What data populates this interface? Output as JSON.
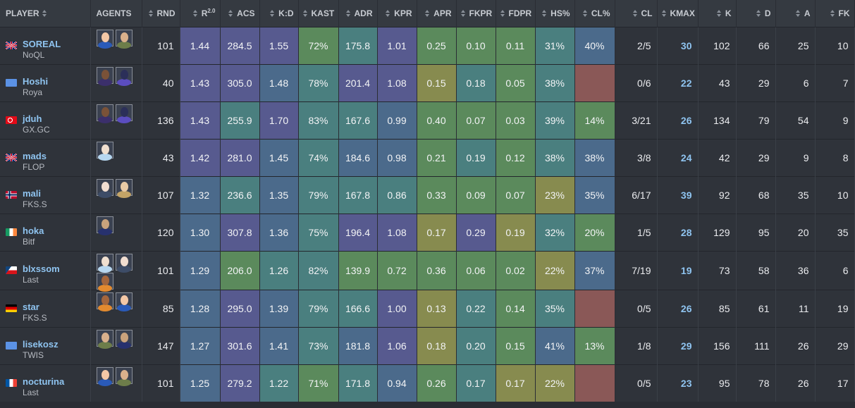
{
  "headers": {
    "player": "PLAYER",
    "agents": "AGENTS",
    "rnd": "RND",
    "rating": "R",
    "rating_sup": "2.0",
    "acs": "ACS",
    "kd": "K:D",
    "kast": "KAST",
    "adr": "ADR",
    "kpr": "KPR",
    "apr": "APR",
    "fkpr": "FKPR",
    "fdpr": "FDPR",
    "hs": "HS%",
    "cl_pct": "CL%",
    "cl": "CL",
    "kmax": "KMAX",
    "k": "K",
    "d": "D",
    "a": "A",
    "fk": "FK"
  },
  "stat_columns": [
    "rating",
    "acs",
    "kd",
    "kast",
    "adr",
    "kpr",
    "apr",
    "fkpr",
    "fdpr",
    "hs",
    "cl_pct"
  ],
  "colors": {
    "purple": "#575a8f",
    "blue": "#4b6a8b",
    "teal": "#4a7f7f",
    "green": "#5b8a5c",
    "olive": "#878b4f",
    "red": "#8a5857",
    "header_bg": "#353a41",
    "row_bg": "#2f333a",
    "link": "#8fc4f0"
  },
  "players": [
    {
      "name": "SOREAL",
      "team": "NoQL",
      "flag": "gb",
      "agents": [
        {
          "icon": "agent-neon-icon"
        },
        {
          "icon": "agent-gekko-icon"
        }
      ],
      "rnd": "101",
      "stats": {
        "rating": {
          "v": "1.44",
          "c": "purple"
        },
        "acs": {
          "v": "284.5",
          "c": "purple"
        },
        "kd": {
          "v": "1.55",
          "c": "purple"
        },
        "kast": {
          "v": "72%",
          "c": "green"
        },
        "adr": {
          "v": "175.8",
          "c": "teal"
        },
        "kpr": {
          "v": "1.01",
          "c": "purple"
        },
        "apr": {
          "v": "0.25",
          "c": "green"
        },
        "fkpr": {
          "v": "0.10",
          "c": "green"
        },
        "fdpr": {
          "v": "0.11",
          "c": "green"
        },
        "hs": {
          "v": "31%",
          "c": "teal"
        },
        "cl_pct": {
          "v": "40%",
          "c": "blue"
        }
      },
      "cl": "2/5",
      "kmax": "30",
      "k": "102",
      "d": "66",
      "a": "25",
      "fk": "10"
    },
    {
      "name": "Hoshi",
      "team": "Roya",
      "flag": "un",
      "agents": [
        {
          "icon": "agent-iso-icon"
        },
        {
          "icon": "agent-omen-icon"
        }
      ],
      "rnd": "40",
      "stats": {
        "rating": {
          "v": "1.43",
          "c": "purple"
        },
        "acs": {
          "v": "305.0",
          "c": "purple"
        },
        "kd": {
          "v": "1.48",
          "c": "blue"
        },
        "kast": {
          "v": "78%",
          "c": "teal"
        },
        "adr": {
          "v": "201.4",
          "c": "purple"
        },
        "kpr": {
          "v": "1.08",
          "c": "purple"
        },
        "apr": {
          "v": "0.15",
          "c": "olive"
        },
        "fkpr": {
          "v": "0.18",
          "c": "teal"
        },
        "fdpr": {
          "v": "0.05",
          "c": "green"
        },
        "hs": {
          "v": "38%",
          "c": "teal"
        },
        "cl_pct": {
          "v": "",
          "c": "red"
        }
      },
      "cl": "0/6",
      "kmax": "22",
      "k": "43",
      "d": "29",
      "a": "6",
      "fk": "7"
    },
    {
      "name": "jduh",
      "team": "GX.GC",
      "flag": "tr",
      "agents": [
        {
          "icon": "agent-iso-icon"
        },
        {
          "icon": "agent-omen-icon"
        }
      ],
      "rnd": "136",
      "stats": {
        "rating": {
          "v": "1.43",
          "c": "purple"
        },
        "acs": {
          "v": "255.9",
          "c": "teal"
        },
        "kd": {
          "v": "1.70",
          "c": "purple"
        },
        "kast": {
          "v": "83%",
          "c": "teal"
        },
        "adr": {
          "v": "167.6",
          "c": "teal"
        },
        "kpr": {
          "v": "0.99",
          "c": "blue"
        },
        "apr": {
          "v": "0.40",
          "c": "green"
        },
        "fkpr": {
          "v": "0.07",
          "c": "green"
        },
        "fdpr": {
          "v": "0.03",
          "c": "green"
        },
        "hs": {
          "v": "39%",
          "c": "teal"
        },
        "cl_pct": {
          "v": "14%",
          "c": "green"
        }
      },
      "cl": "3/21",
      "kmax": "26",
      "k": "134",
      "d": "79",
      "a": "54",
      "fk": "9"
    },
    {
      "name": "mads",
      "team": "FLOP",
      "flag": "gb",
      "agents": [
        {
          "icon": "agent-sage-icon"
        }
      ],
      "rnd": "43",
      "stats": {
        "rating": {
          "v": "1.42",
          "c": "purple"
        },
        "acs": {
          "v": "281.0",
          "c": "purple"
        },
        "kd": {
          "v": "1.45",
          "c": "blue"
        },
        "kast": {
          "v": "74%",
          "c": "teal"
        },
        "adr": {
          "v": "184.6",
          "c": "blue"
        },
        "kpr": {
          "v": "0.98",
          "c": "blue"
        },
        "apr": {
          "v": "0.21",
          "c": "green"
        },
        "fkpr": {
          "v": "0.19",
          "c": "teal"
        },
        "fdpr": {
          "v": "0.12",
          "c": "green"
        },
        "hs": {
          "v": "38%",
          "c": "teal"
        },
        "cl_pct": {
          "v": "38%",
          "c": "blue"
        }
      },
      "cl": "3/8",
      "kmax": "24",
      "k": "42",
      "d": "29",
      "a": "9",
      "fk": "8"
    },
    {
      "name": "mali",
      "team": "FKS.S",
      "flag": "no",
      "agents": [
        {
          "icon": "agent-jett-icon"
        },
        {
          "icon": "agent-chamber-icon"
        }
      ],
      "rnd": "107",
      "stats": {
        "rating": {
          "v": "1.32",
          "c": "blue"
        },
        "acs": {
          "v": "236.6",
          "c": "teal"
        },
        "kd": {
          "v": "1.35",
          "c": "blue"
        },
        "kast": {
          "v": "79%",
          "c": "teal"
        },
        "adr": {
          "v": "167.8",
          "c": "teal"
        },
        "kpr": {
          "v": "0.86",
          "c": "teal"
        },
        "apr": {
          "v": "0.33",
          "c": "green"
        },
        "fkpr": {
          "v": "0.09",
          "c": "green"
        },
        "fdpr": {
          "v": "0.07",
          "c": "green"
        },
        "hs": {
          "v": "23%",
          "c": "olive"
        },
        "cl_pct": {
          "v": "35%",
          "c": "blue"
        }
      },
      "cl": "6/17",
      "kmax": "39",
      "k": "92",
      "d": "68",
      "a": "35",
      "fk": "10"
    },
    {
      "name": "hoka",
      "team": "Bitf",
      "flag": "ie",
      "agents": [
        {
          "icon": "agent-yoru-icon"
        }
      ],
      "rnd": "120",
      "stats": {
        "rating": {
          "v": "1.30",
          "c": "blue"
        },
        "acs": {
          "v": "307.8",
          "c": "purple"
        },
        "kd": {
          "v": "1.36",
          "c": "blue"
        },
        "kast": {
          "v": "75%",
          "c": "teal"
        },
        "adr": {
          "v": "196.4",
          "c": "purple"
        },
        "kpr": {
          "v": "1.08",
          "c": "purple"
        },
        "apr": {
          "v": "0.17",
          "c": "olive"
        },
        "fkpr": {
          "v": "0.29",
          "c": "purple"
        },
        "fdpr": {
          "v": "0.19",
          "c": "olive"
        },
        "hs": {
          "v": "32%",
          "c": "teal"
        },
        "cl_pct": {
          "v": "20%",
          "c": "green"
        }
      },
      "cl": "1/5",
      "kmax": "28",
      "k": "129",
      "d": "95",
      "a": "20",
      "fk": "35"
    },
    {
      "name": "blxssom",
      "team": "Last",
      "flag": "cz",
      "agents": [
        {
          "icon": "agent-sage-icon"
        },
        {
          "icon": "agent-jett-icon"
        },
        {
          "icon": "agent-phoenix-icon"
        }
      ],
      "rnd": "101",
      "stats": {
        "rating": {
          "v": "1.29",
          "c": "blue"
        },
        "acs": {
          "v": "206.0",
          "c": "green"
        },
        "kd": {
          "v": "1.26",
          "c": "teal"
        },
        "kast": {
          "v": "82%",
          "c": "teal"
        },
        "adr": {
          "v": "139.9",
          "c": "green"
        },
        "kpr": {
          "v": "0.72",
          "c": "green"
        },
        "apr": {
          "v": "0.36",
          "c": "green"
        },
        "fkpr": {
          "v": "0.06",
          "c": "green"
        },
        "fdpr": {
          "v": "0.02",
          "c": "green"
        },
        "hs": {
          "v": "22%",
          "c": "olive"
        },
        "cl_pct": {
          "v": "37%",
          "c": "blue"
        }
      },
      "cl": "7/19",
      "kmax": "19",
      "k": "73",
      "d": "58",
      "a": "36",
      "fk": "6"
    },
    {
      "name": "star",
      "team": "FKS.S",
      "flag": "de",
      "agents": [
        {
          "icon": "agent-phoenix-icon"
        },
        {
          "icon": "agent-neon-icon"
        }
      ],
      "rnd": "85",
      "stats": {
        "rating": {
          "v": "1.28",
          "c": "blue"
        },
        "acs": {
          "v": "295.0",
          "c": "purple"
        },
        "kd": {
          "v": "1.39",
          "c": "blue"
        },
        "kast": {
          "v": "79%",
          "c": "teal"
        },
        "adr": {
          "v": "166.6",
          "c": "teal"
        },
        "kpr": {
          "v": "1.00",
          "c": "purple"
        },
        "apr": {
          "v": "0.13",
          "c": "olive"
        },
        "fkpr": {
          "v": "0.22",
          "c": "teal"
        },
        "fdpr": {
          "v": "0.14",
          "c": "green"
        },
        "hs": {
          "v": "35%",
          "c": "teal"
        },
        "cl_pct": {
          "v": "",
          "c": "red"
        }
      },
      "cl": "0/5",
      "kmax": "26",
      "k": "85",
      "d": "61",
      "a": "11",
      "fk": "19"
    },
    {
      "name": "lisekosz",
      "team": "TWIS",
      "flag": "un",
      "agents": [
        {
          "icon": "agent-gekko-icon"
        },
        {
          "icon": "agent-yoru-icon"
        }
      ],
      "rnd": "147",
      "stats": {
        "rating": {
          "v": "1.27",
          "c": "blue"
        },
        "acs": {
          "v": "301.6",
          "c": "purple"
        },
        "kd": {
          "v": "1.41",
          "c": "blue"
        },
        "kast": {
          "v": "73%",
          "c": "teal"
        },
        "adr": {
          "v": "181.8",
          "c": "blue"
        },
        "kpr": {
          "v": "1.06",
          "c": "purple"
        },
        "apr": {
          "v": "0.18",
          "c": "olive"
        },
        "fkpr": {
          "v": "0.20",
          "c": "teal"
        },
        "fdpr": {
          "v": "0.15",
          "c": "green"
        },
        "hs": {
          "v": "41%",
          "c": "blue"
        },
        "cl_pct": {
          "v": "13%",
          "c": "green"
        }
      },
      "cl": "1/8",
      "kmax": "29",
      "k": "156",
      "d": "111",
      "a": "26",
      "fk": "29"
    },
    {
      "name": "nocturina",
      "team": "Last",
      "flag": "fr",
      "agents": [
        {
          "icon": "agent-neon-icon"
        },
        {
          "icon": "agent-gekko-icon"
        }
      ],
      "rnd": "101",
      "stats": {
        "rating": {
          "v": "1.25",
          "c": "blue"
        },
        "acs": {
          "v": "279.2",
          "c": "purple"
        },
        "kd": {
          "v": "1.22",
          "c": "teal"
        },
        "kast": {
          "v": "71%",
          "c": "green"
        },
        "adr": {
          "v": "171.8",
          "c": "teal"
        },
        "kpr": {
          "v": "0.94",
          "c": "blue"
        },
        "apr": {
          "v": "0.26",
          "c": "green"
        },
        "fkpr": {
          "v": "0.17",
          "c": "teal"
        },
        "fdpr": {
          "v": "0.17",
          "c": "olive"
        },
        "hs": {
          "v": "22%",
          "c": "olive"
        },
        "cl_pct": {
          "v": "",
          "c": "red"
        }
      },
      "cl": "0/5",
      "kmax": "23",
      "k": "95",
      "d": "78",
      "a": "26",
      "fk": "17"
    }
  ]
}
